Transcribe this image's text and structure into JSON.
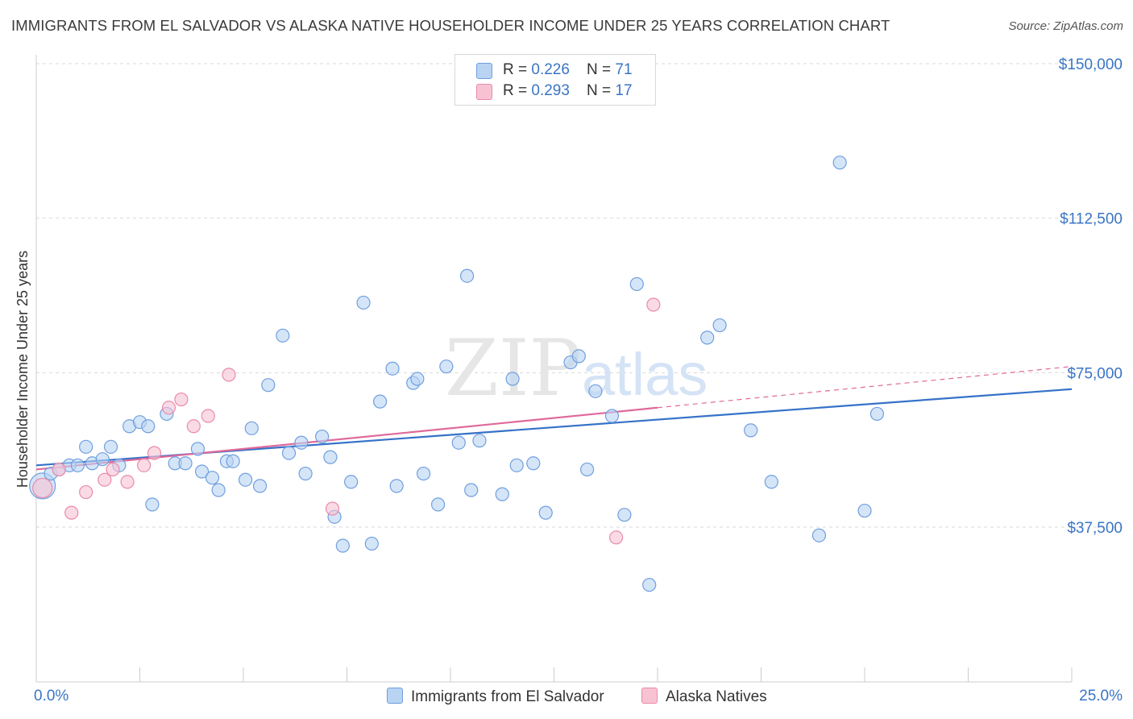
{
  "title": "IMMIGRANTS FROM EL SALVADOR VS ALASKA NATIVE HOUSEHOLDER INCOME UNDER 25 YEARS CORRELATION CHART",
  "source": "Source: ZipAtlas.com",
  "watermark": {
    "zip": "ZIP",
    "atlas": "atlas"
  },
  "legend_top": [
    {
      "r_label": "R = ",
      "r_value": "0.226",
      "n_label": "N = ",
      "n_value": "71"
    },
    {
      "r_label": "R = ",
      "r_value": "0.293",
      "n_label": "N = ",
      "n_value": "17"
    }
  ],
  "colors": {
    "blue_fill": "#b9d3f3",
    "blue_stroke": "#6f9fde",
    "blue_line": "#3672c8",
    "pink_fill": "#f7c3d3",
    "pink_stroke": "#e98aaa",
    "pink_line": "#e0699a",
    "grid": "#d9d9d9",
    "axis_text": "#3a75c4"
  },
  "chart_data": {
    "type": "scatter",
    "title": "IMMIGRANTS FROM EL SALVADOR VS ALASKA NATIVE HOUSEHOLDER INCOME UNDER 25 YEARS CORRELATION CHART",
    "xlabel": "",
    "ylabel": "Householder Income Under 25 years",
    "xlim": [
      0,
      25
    ],
    "ylim": [
      0,
      155000
    ],
    "x_tick_labels": [
      "0.0%",
      "25.0%"
    ],
    "y_ticks": [
      37500,
      75000,
      112500,
      150000
    ],
    "y_tick_labels": [
      "$37,500",
      "$75,000",
      "$112,500",
      "$150,000"
    ],
    "grid": true,
    "legend_position": "bottom",
    "series": [
      {
        "name": "Immigrants from El Salvador",
        "points": [
          [
            0.15,
            47500
          ],
          [
            0.35,
            50500
          ],
          [
            0.55,
            51500
          ],
          [
            0.8,
            52500
          ],
          [
            1.0,
            52500
          ],
          [
            1.2,
            57000
          ],
          [
            1.35,
            53000
          ],
          [
            1.6,
            54000
          ],
          [
            1.8,
            57000
          ],
          [
            2.0,
            52500
          ],
          [
            2.25,
            62000
          ],
          [
            2.5,
            63000
          ],
          [
            2.7,
            62000
          ],
          [
            2.8,
            43000
          ],
          [
            3.15,
            65000
          ],
          [
            3.35,
            53000
          ],
          [
            3.6,
            53000
          ],
          [
            3.9,
            56500
          ],
          [
            4.0,
            51000
          ],
          [
            4.25,
            49500
          ],
          [
            4.4,
            46500
          ],
          [
            4.6,
            53500
          ],
          [
            4.75,
            53500
          ],
          [
            5.05,
            49000
          ],
          [
            5.2,
            61500
          ],
          [
            5.4,
            47500
          ],
          [
            5.6,
            72000
          ],
          [
            5.95,
            84000
          ],
          [
            6.1,
            55500
          ],
          [
            6.4,
            58000
          ],
          [
            6.5,
            50500
          ],
          [
            6.9,
            59500
          ],
          [
            7.1,
            54500
          ],
          [
            7.2,
            40000
          ],
          [
            7.4,
            33000
          ],
          [
            7.6,
            48500
          ],
          [
            7.9,
            92000
          ],
          [
            8.1,
            33500
          ],
          [
            8.3,
            68000
          ],
          [
            8.6,
            76000
          ],
          [
            8.7,
            47500
          ],
          [
            9.1,
            72500
          ],
          [
            9.2,
            73500
          ],
          [
            9.35,
            50500
          ],
          [
            9.7,
            43000
          ],
          [
            9.9,
            76500
          ],
          [
            10.2,
            58000
          ],
          [
            10.4,
            98500
          ],
          [
            10.5,
            46500
          ],
          [
            10.7,
            58500
          ],
          [
            11.25,
            45500
          ],
          [
            11.5,
            73500
          ],
          [
            11.6,
            52500
          ],
          [
            12.0,
            53000
          ],
          [
            12.3,
            41000
          ],
          [
            12.9,
            77500
          ],
          [
            13.1,
            79000
          ],
          [
            13.3,
            51500
          ],
          [
            13.5,
            70500
          ],
          [
            13.9,
            64500
          ],
          [
            14.2,
            40500
          ],
          [
            14.5,
            96500
          ],
          [
            14.8,
            23500
          ],
          [
            16.2,
            83500
          ],
          [
            16.5,
            86500
          ],
          [
            17.25,
            61000
          ],
          [
            17.75,
            48500
          ],
          [
            18.9,
            35500
          ],
          [
            19.4,
            126000
          ],
          [
            20.0,
            41500
          ],
          [
            20.3,
            65000
          ]
        ]
      },
      {
        "name": "Alaska Natives",
        "points": [
          [
            0.15,
            47000
          ],
          [
            0.55,
            51500
          ],
          [
            0.85,
            41000
          ],
          [
            1.2,
            46000
          ],
          [
            1.65,
            49000
          ],
          [
            1.85,
            51500
          ],
          [
            2.2,
            48500
          ],
          [
            2.6,
            52500
          ],
          [
            2.85,
            55500
          ],
          [
            3.2,
            66500
          ],
          [
            3.5,
            68500
          ],
          [
            3.8,
            62000
          ],
          [
            4.15,
            64500
          ],
          [
            4.65,
            74500
          ],
          [
            7.15,
            42000
          ],
          [
            14.0,
            35000
          ],
          [
            14.9,
            91500
          ]
        ]
      }
    ],
    "trendlines": [
      {
        "series": "Immigrants from El Salvador",
        "x": [
          0,
          25
        ],
        "y": [
          52500,
          71000
        ]
      },
      {
        "series": "Alaska Natives",
        "x": [
          0,
          15
        ],
        "y": [
          51500,
          66500
        ],
        "dashed_extension_to": [
          25,
          76500
        ]
      }
    ]
  }
}
